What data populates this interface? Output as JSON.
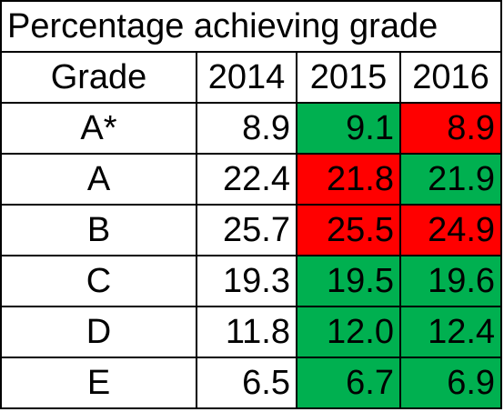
{
  "title": "Percentage achieving grade",
  "header": {
    "grade_label": "Grade",
    "years": [
      "2014",
      "2015",
      "2016"
    ]
  },
  "rows": [
    {
      "grade": "A*",
      "values": [
        "8.9",
        "9.1",
        "8.9"
      ]
    },
    {
      "grade": "A",
      "values": [
        "22.4",
        "21.8",
        "21.9"
      ]
    },
    {
      "grade": "B",
      "values": [
        "25.7",
        "25.5",
        "24.9"
      ]
    },
    {
      "grade": "C",
      "values": [
        "19.3",
        "19.5",
        "19.6"
      ]
    },
    {
      "grade": "D",
      "values": [
        "11.8",
        "12.0",
        "12.4"
      ]
    },
    {
      "grade": "E",
      "values": [
        "6.5",
        "6.7",
        "6.9"
      ]
    }
  ],
  "colors": {
    "increase": "#00b050",
    "decrease": "#ff0000",
    "border": "#000000"
  }
}
